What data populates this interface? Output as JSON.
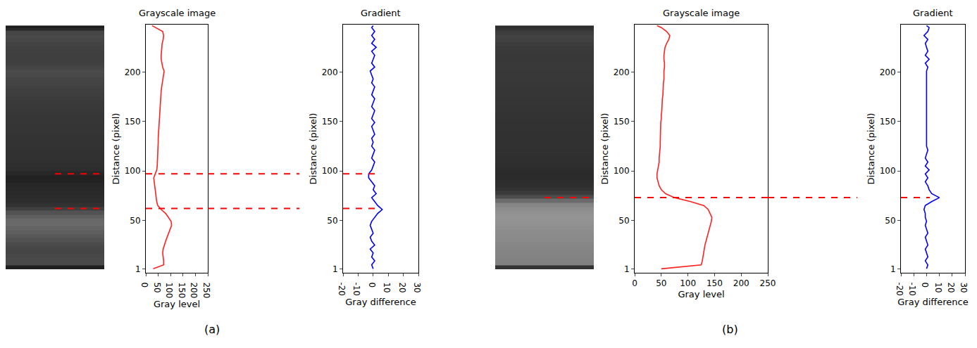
{
  "chart_data": [
    {
      "label": "(a)",
      "boundaries": [
        97,
        62
      ],
      "charts": [
        {
          "type": "line",
          "title": "Grayscale image",
          "xlabel": "Gray level",
          "ylabel": "Distance (pixel)",
          "color": "#ff2020",
          "x": [
            30,
            72,
            72,
            70,
            68,
            70,
            74,
            80,
            86,
            92,
            98,
            104,
            102,
            92,
            80,
            62,
            48,
            44,
            42,
            40,
            40,
            38,
            34,
            32,
            38,
            44,
            46,
            47,
            48,
            48,
            49,
            50,
            50,
            50,
            51,
            52,
            52,
            53,
            53,
            54,
            55,
            56,
            57,
            58,
            60,
            62,
            64,
            66,
            68,
            72,
            74,
            68,
            64,
            62,
            62,
            63,
            64,
            66,
            70,
            72,
            68,
            38,
            25
          ],
          "y": [
            1,
            5,
            9,
            13,
            17,
            21,
            25,
            29,
            33,
            37,
            41,
            45,
            49,
            53,
            57,
            61,
            65,
            69,
            73,
            77,
            81,
            85,
            89,
            93,
            97,
            101,
            105,
            109,
            113,
            117,
            121,
            125,
            129,
            133,
            137,
            141,
            145,
            149,
            153,
            157,
            161,
            165,
            169,
            173,
            177,
            181,
            185,
            189,
            193,
            197,
            201,
            205,
            209,
            213,
            217,
            221,
            225,
            229,
            233,
            237,
            241,
            245,
            247
          ],
          "xlim": [
            0,
            250
          ],
          "xticks": [
            0,
            50,
            100,
            150,
            200,
            250
          ],
          "ylim": [
            -3,
            248
          ],
          "yticks": [
            1,
            50,
            100,
            150,
            200
          ]
        },
        {
          "type": "line",
          "title": "Gradient",
          "xlabel": "Gray difference",
          "ylabel": "Distance (pixel)",
          "color": "#0000ff",
          "x": [
            0,
            -1,
            1,
            -1,
            0,
            -2,
            1,
            -1,
            -2,
            0,
            -1,
            -2,
            -1,
            1,
            3,
            6,
            3,
            1,
            -1,
            2,
            0,
            1,
            -1,
            -3,
            -3,
            -1,
            0,
            1,
            -1,
            0,
            1,
            -1,
            0,
            -1,
            1,
            0,
            -1,
            1,
            -1,
            0,
            1,
            -1,
            0,
            1,
            -1,
            0,
            1,
            -1,
            0,
            -1,
            -2,
            1,
            -1,
            0,
            1,
            -1,
            2,
            -1,
            1,
            -1,
            1,
            -1,
            0
          ],
          "y": [
            1,
            5,
            9,
            13,
            17,
            21,
            25,
            29,
            33,
            37,
            41,
            45,
            49,
            53,
            57,
            61,
            65,
            69,
            73,
            77,
            81,
            85,
            89,
            93,
            97,
            101,
            105,
            109,
            113,
            117,
            121,
            125,
            129,
            133,
            137,
            141,
            145,
            149,
            153,
            157,
            161,
            165,
            169,
            173,
            177,
            181,
            185,
            189,
            193,
            197,
            201,
            205,
            209,
            213,
            217,
            221,
            225,
            229,
            233,
            237,
            241,
            245,
            247
          ],
          "xlim": [
            -20,
            30
          ],
          "xticks": [
            -20,
            -10,
            0,
            10,
            20,
            30
          ],
          "ylim": [
            -3,
            248
          ],
          "yticks": [
            1,
            50,
            100,
            150,
            200
          ]
        }
      ]
    },
    {
      "label": "(b)",
      "boundaries": [
        73
      ],
      "charts": [
        {
          "type": "line",
          "title": "Grayscale image",
          "xlabel": "Gray level",
          "ylabel": "Distance (pixel)",
          "color": "#ff2020",
          "x": [
            50,
            125,
            127,
            128,
            129,
            130,
            132,
            134,
            136,
            138,
            140,
            142,
            144,
            145,
            142,
            138,
            130,
            105,
            75,
            58,
            50,
            46,
            44,
            42,
            42,
            43,
            45,
            46,
            46,
            47,
            47,
            48,
            48,
            48,
            48,
            49,
            49,
            49,
            50,
            50,
            51,
            51,
            52,
            52,
            53,
            53,
            54,
            54,
            55,
            55,
            55,
            56,
            56,
            55,
            55,
            56,
            57,
            60,
            64,
            66,
            60,
            50,
            42
          ],
          "y": [
            1,
            5,
            9,
            13,
            17,
            21,
            25,
            29,
            33,
            37,
            41,
            45,
            49,
            53,
            57,
            61,
            65,
            69,
            73,
            77,
            81,
            85,
            89,
            93,
            97,
            101,
            105,
            109,
            113,
            117,
            121,
            125,
            129,
            133,
            137,
            141,
            145,
            149,
            153,
            157,
            161,
            165,
            169,
            173,
            177,
            181,
            185,
            189,
            193,
            197,
            201,
            205,
            209,
            213,
            217,
            221,
            225,
            229,
            233,
            237,
            241,
            245,
            247
          ],
          "xlim": [
            0,
            250
          ],
          "xticks": [
            0,
            50,
            100,
            150,
            200,
            250
          ],
          "ylim": [
            -3,
            248
          ],
          "yticks": [
            1,
            50,
            100,
            150,
            200
          ]
        },
        {
          "type": "line",
          "title": "Gradient",
          "xlabel": "Gray difference",
          "ylabel": "Distance (pixel)",
          "color": "#0000ff",
          "x": [
            0,
            1,
            -1,
            1,
            0,
            -1,
            1,
            0,
            -1,
            1,
            0,
            -1,
            0,
            -1,
            -1,
            -2,
            -1,
            4,
            10,
            4,
            2,
            1,
            -1,
            1,
            -1,
            2,
            -1,
            1,
            -1,
            0,
            1,
            0,
            0,
            0,
            0,
            0,
            0,
            0,
            0,
            0,
            0,
            0,
            0,
            0,
            0,
            0,
            0,
            0,
            0,
            0,
            0,
            1,
            -1,
            2,
            -1,
            1,
            0,
            -1,
            1,
            -2,
            1,
            2,
            0
          ],
          "y": [
            1,
            5,
            9,
            13,
            17,
            21,
            25,
            29,
            33,
            37,
            41,
            45,
            49,
            53,
            57,
            61,
            65,
            69,
            73,
            77,
            81,
            85,
            89,
            93,
            97,
            101,
            105,
            109,
            113,
            117,
            121,
            125,
            129,
            133,
            137,
            141,
            145,
            149,
            153,
            157,
            161,
            165,
            169,
            173,
            177,
            181,
            185,
            189,
            193,
            197,
            201,
            205,
            209,
            213,
            217,
            221,
            225,
            229,
            233,
            237,
            241,
            245,
            247
          ],
          "xlim": [
            -20,
            30
          ],
          "xticks": [
            -20,
            -10,
            0,
            10,
            20,
            30
          ],
          "ylim": [
            -3,
            248
          ],
          "yticks": [
            1,
            50,
            100,
            150,
            200
          ]
        }
      ]
    }
  ]
}
